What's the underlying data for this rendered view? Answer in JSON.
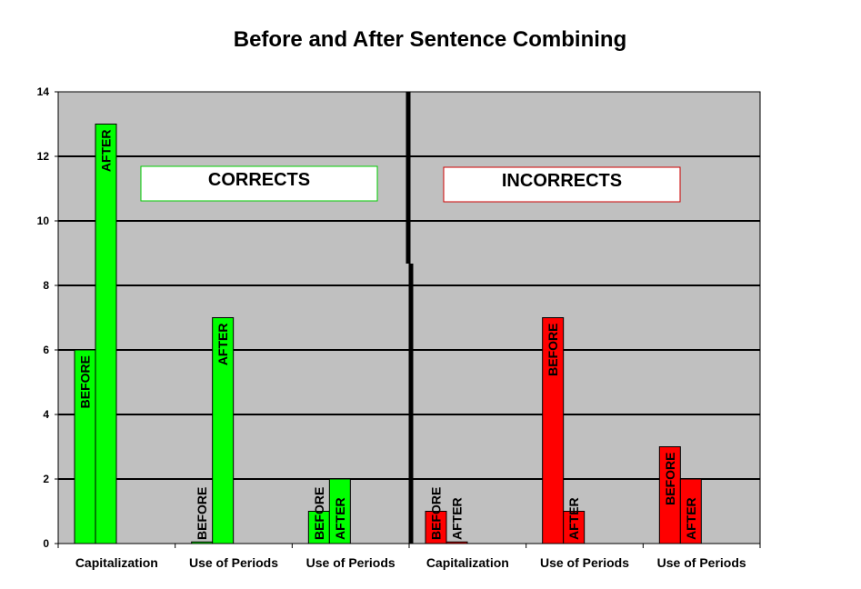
{
  "chart_data": {
    "type": "bar",
    "title": "Before and After Sentence Combining",
    "xlabel": "",
    "ylabel": "",
    "ylim": [
      0,
      14
    ],
    "yticks": [
      0,
      2,
      4,
      6,
      8,
      10,
      12,
      14
    ],
    "grid": true,
    "categories": [
      "Capitalization",
      "Use of Periods",
      "Use of Periods",
      "Capitalization",
      "Use of Periods",
      "Use of Periods"
    ],
    "groups": [
      {
        "label": "CORRECTS",
        "color": "#00ff00",
        "border": "#00cc00",
        "category_indices": [
          0,
          1,
          2
        ]
      },
      {
        "label": "INCORRECTS",
        "color": "#ff0000",
        "border": "#cc0000",
        "category_indices": [
          3,
          4,
          5
        ]
      }
    ],
    "series": [
      {
        "label": "BEFORE",
        "values": [
          6,
          0.05,
          1,
          1,
          7,
          3
        ]
      },
      {
        "label": "AFTER",
        "values": [
          13,
          7,
          2,
          0.05,
          1,
          2
        ]
      }
    ]
  }
}
